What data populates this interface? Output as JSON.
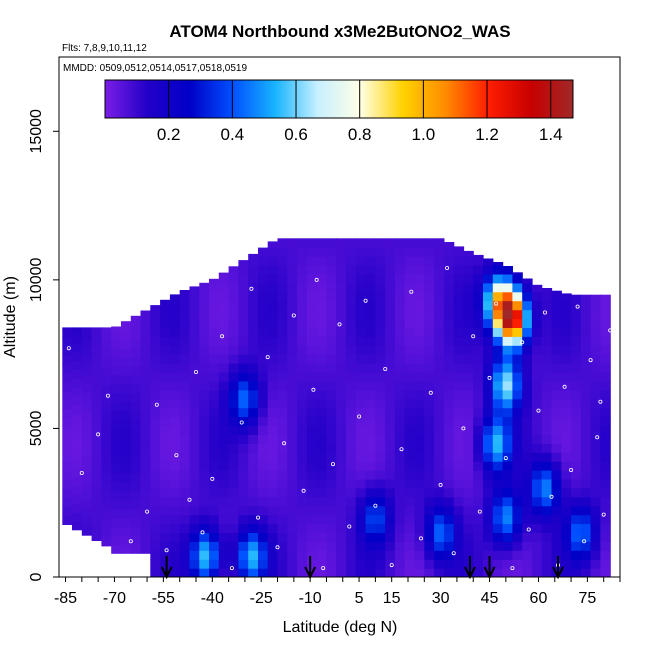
{
  "chart_data": {
    "type": "heatmap",
    "title": "ATOM4 Northbound x3Me2ButONO2_WAS",
    "flights_line": "Flts: 7,8,9,10,11,12",
    "dates_line": "MMDD: 0509,0512,0514,0517,0518,0519",
    "xlabel": "Latitude (deg N)",
    "ylabel": "Altitude (m)",
    "xlim": [
      -87,
      85
    ],
    "ylim": [
      0,
      17500
    ],
    "x_ticks": [
      -85,
      -70,
      -55,
      -40,
      -25,
      -10,
      5,
      15,
      30,
      45,
      60,
      75
    ],
    "y_ticks": [
      0,
      5000,
      10000,
      15000
    ],
    "colorbar": {
      "range": [
        0,
        1.47
      ],
      "ticks": [
        0.2,
        0.4,
        0.6,
        0.8,
        1.0,
        1.2,
        1.4
      ],
      "colors": [
        "#7b1ee6",
        "#2200c8",
        "#0000c8",
        "#0050ff",
        "#18b4ff",
        "#c8f0ff",
        "#ffffe6",
        "#ffd200",
        "#ff8c00",
        "#ff1e00",
        "#c80000",
        "#a02828"
      ]
    },
    "profile_top_m": [
      {
        "lat": -85,
        "top": 8400
      },
      {
        "lat": -70,
        "top": 8400
      },
      {
        "lat": -60,
        "top": 9000
      },
      {
        "lat": -50,
        "top": 9600
      },
      {
        "lat": -40,
        "top": 10000
      },
      {
        "lat": -30,
        "top": 10700
      },
      {
        "lat": -20,
        "top": 11400
      },
      {
        "lat": 0,
        "top": 11400
      },
      {
        "lat": 20,
        "top": 11400
      },
      {
        "lat": 30,
        "top": 11400
      },
      {
        "lat": 40,
        "top": 10900
      },
      {
        "lat": 50,
        "top": 10500
      },
      {
        "lat": 60,
        "top": 9800
      },
      {
        "lat": 70,
        "top": 9500
      },
      {
        "lat": 82,
        "top": 9500
      }
    ],
    "features": [
      {
        "lat": 52,
        "alt": 8700,
        "value": 1.25
      },
      {
        "lat": 48,
        "alt": 9300,
        "value": 0.75
      },
      {
        "lat": 50,
        "alt": 6500,
        "value": 0.55
      },
      {
        "lat": 47,
        "alt": 4500,
        "value": 0.45
      },
      {
        "lat": 50,
        "alt": 2000,
        "value": 0.4
      },
      {
        "lat": -42,
        "alt": 700,
        "value": 0.5
      },
      {
        "lat": -28,
        "alt": 700,
        "value": 0.45
      },
      {
        "lat": -30,
        "alt": 6000,
        "value": 0.35
      },
      {
        "lat": 10,
        "alt": 2000,
        "value": 0.3
      },
      {
        "lat": 30,
        "alt": 1500,
        "value": 0.35
      },
      {
        "lat": 62,
        "alt": 3000,
        "value": 0.4
      },
      {
        "lat": 73,
        "alt": 1500,
        "value": 0.35
      }
    ],
    "background_value": 0.08,
    "sample_points": [
      [
        -84,
        7700
      ],
      [
        -80,
        3500
      ],
      [
        -75,
        4800
      ],
      [
        -72,
        6100
      ],
      [
        -65,
        1200
      ],
      [
        -60,
        2200
      ],
      [
        -57,
        5800
      ],
      [
        -54,
        900
      ],
      [
        -51,
        4100
      ],
      [
        -47,
        2600
      ],
      [
        -45,
        6900
      ],
      [
        -43,
        1500
      ],
      [
        -40,
        3300
      ],
      [
        -37,
        8100
      ],
      [
        -34,
        300
      ],
      [
        -31,
        5200
      ],
      [
        -28,
        9700
      ],
      [
        -26,
        2000
      ],
      [
        -23,
        7400
      ],
      [
        -20,
        1000
      ],
      [
        -18,
        4500
      ],
      [
        -15,
        8800
      ],
      [
        -12,
        2900
      ],
      [
        -9,
        6300
      ],
      [
        -8,
        10000
      ],
      [
        -6,
        300
      ],
      [
        -3,
        3800
      ],
      [
        -1,
        8500
      ],
      [
        2,
        1700
      ],
      [
        5,
        5400
      ],
      [
        7,
        9300
      ],
      [
        10,
        2400
      ],
      [
        13,
        7000
      ],
      [
        15,
        400
      ],
      [
        18,
        4300
      ],
      [
        21,
        9600
      ],
      [
        24,
        1300
      ],
      [
        27,
        6200
      ],
      [
        30,
        3100
      ],
      [
        32,
        10400
      ],
      [
        34,
        800
      ],
      [
        37,
        5000
      ],
      [
        40,
        8100
      ],
      [
        42,
        2200
      ],
      [
        45,
        6700
      ],
      [
        47,
        9200
      ],
      [
        50,
        4000
      ],
      [
        52,
        300
      ],
      [
        55,
        7900
      ],
      [
        57,
        1600
      ],
      [
        60,
        5600
      ],
      [
        62,
        8900
      ],
      [
        64,
        2700
      ],
      [
        66,
        400
      ],
      [
        68,
        6400
      ],
      [
        70,
        3600
      ],
      [
        72,
        9100
      ],
      [
        74,
        1200
      ],
      [
        76,
        7300
      ],
      [
        78,
        4700
      ],
      [
        80,
        2100
      ],
      [
        82,
        8300
      ],
      [
        83,
        500
      ],
      [
        79,
        5900
      ]
    ],
    "arrow_latitudes": [
      -54,
      -10,
      39,
      45,
      66
    ]
  }
}
